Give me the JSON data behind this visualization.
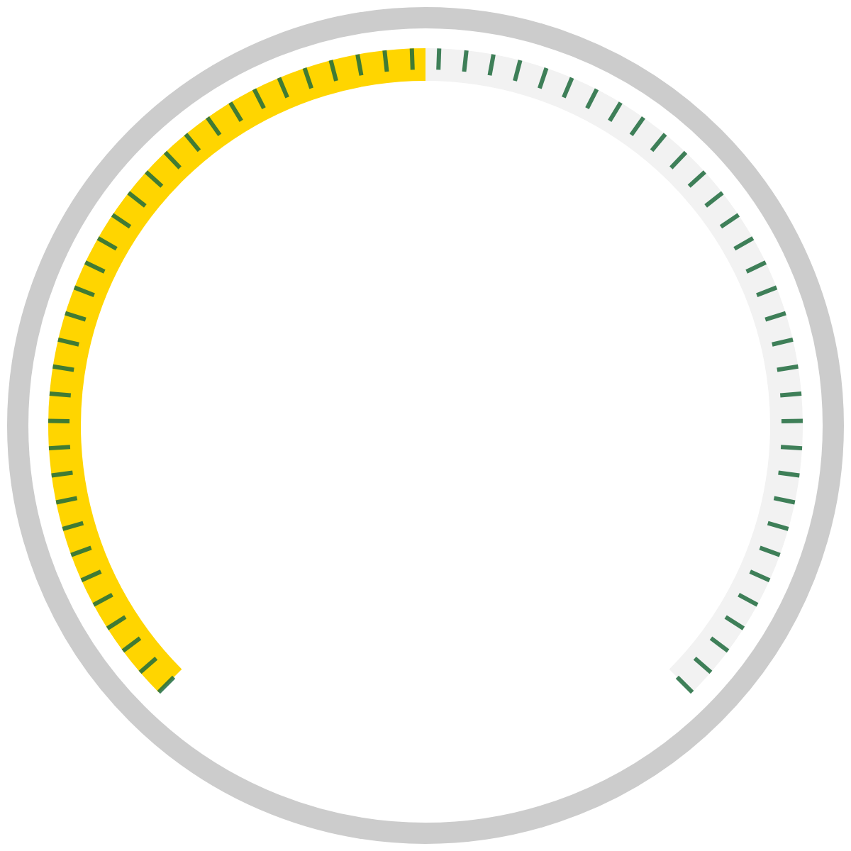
{
  "chart_data": {
    "type": "donut",
    "categories": [
      null,
      null
    ],
    "values": [
      50,
      50
    ],
    "colors": [
      "#ffd500",
      "#f2f2f2"
    ]
  }
}
